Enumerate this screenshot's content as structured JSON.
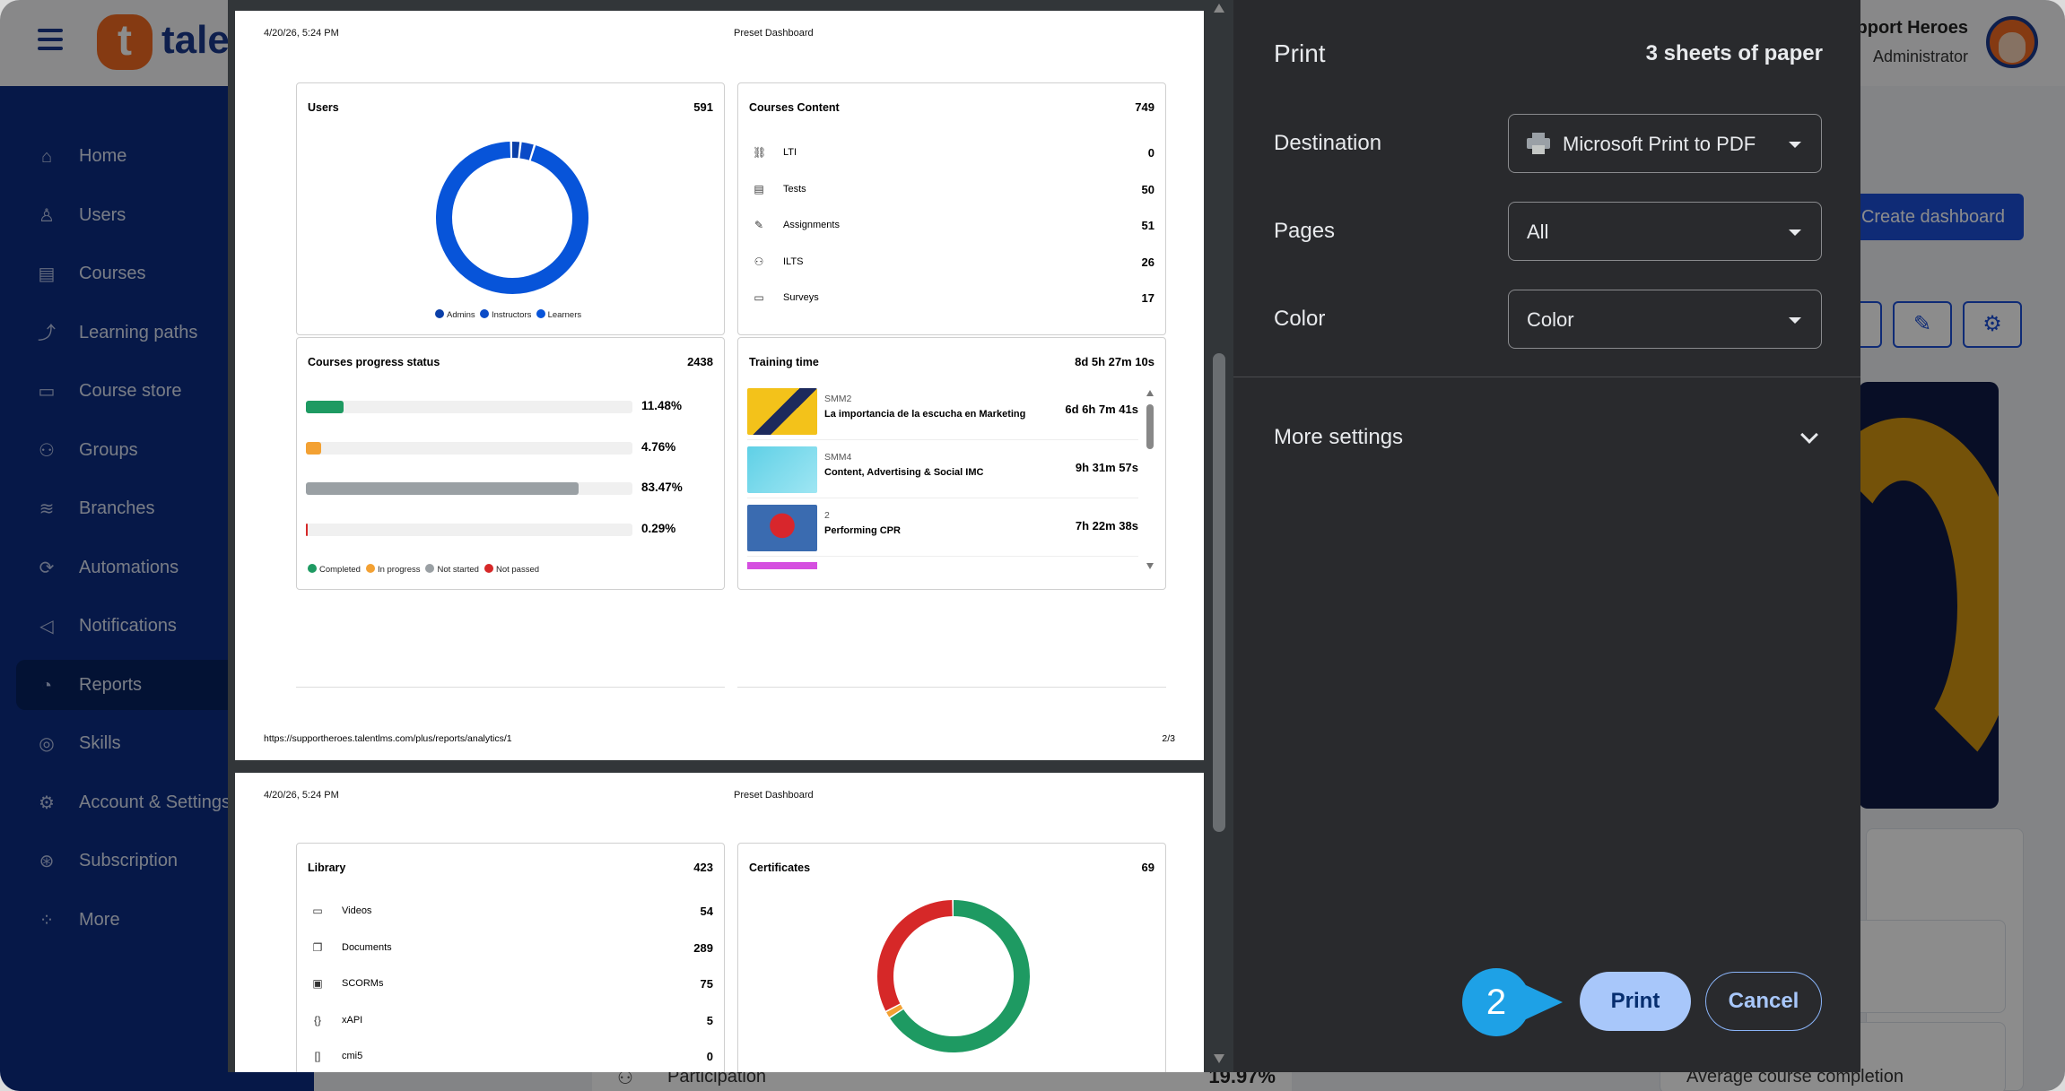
{
  "app": {
    "brand": "tale",
    "user_name": "pport Heroes",
    "user_role": "Administrator",
    "sidebar": [
      {
        "label": "Home",
        "icon": "home-icon",
        "glyph": "⌂"
      },
      {
        "label": "Users",
        "icon": "user-icon",
        "glyph": "♙"
      },
      {
        "label": "Courses",
        "icon": "book-icon",
        "glyph": "▤"
      },
      {
        "label": "Learning paths",
        "icon": "path-icon",
        "glyph": "⤴"
      },
      {
        "label": "Course store",
        "icon": "store-icon",
        "glyph": "▭"
      },
      {
        "label": "Groups",
        "icon": "groups-icon",
        "glyph": "⚇"
      },
      {
        "label": "Branches",
        "icon": "layers-icon",
        "glyph": "≋"
      },
      {
        "label": "Automations",
        "icon": "automation-icon",
        "glyph": "⟳"
      },
      {
        "label": "Notifications",
        "icon": "megaphone-icon",
        "glyph": "◁"
      },
      {
        "label": "Reports",
        "icon": "pie-chart-icon",
        "glyph": "◔",
        "active": true
      },
      {
        "label": "Skills",
        "icon": "skills-icon",
        "glyph": "◎"
      },
      {
        "label": "Account & Settings",
        "icon": "gear-icon",
        "glyph": "⚙"
      },
      {
        "label": "Subscription",
        "icon": "subscription-icon",
        "glyph": "⊛"
      },
      {
        "label": "More",
        "icon": "grid-icon",
        "glyph": "⁘"
      }
    ],
    "create_dashboard": "Create dashboard",
    "participation_label": "Participation",
    "participation_value": "19.97%",
    "avg_label": "Average course completion"
  },
  "preview": {
    "page1": {
      "date": "4/20/26, 5:24 PM",
      "title": "Preset Dashboard",
      "url": "https://supportheroes.talentlms.com/plus/reports/analytics/1",
      "page_no": "2/3",
      "users": {
        "title": "Users",
        "value": "591",
        "legend": [
          "Admins",
          "Instructors",
          "Learners"
        ],
        "segments": [
          0.02,
          0.03,
          0.95
        ],
        "colors": [
          "#0a3fa8",
          "#0b4bc7",
          "#0754d9"
        ]
      },
      "content": {
        "title": "Courses Content",
        "value": "749",
        "rows": [
          {
            "label": "LTI",
            "value": "0",
            "icon": "link-icon",
            "glyph": "⛓"
          },
          {
            "label": "Tests",
            "value": "50",
            "icon": "test-icon",
            "glyph": "▤"
          },
          {
            "label": "Assignments",
            "value": "51",
            "icon": "pencil-icon",
            "glyph": "✎"
          },
          {
            "label": "ILTS",
            "value": "26",
            "icon": "ilt-icon",
            "glyph": "⚇"
          },
          {
            "label": "Surveys",
            "value": "17",
            "icon": "survey-icon",
            "glyph": "▭"
          }
        ]
      },
      "progress": {
        "title": "Courses progress status",
        "value": "2438",
        "rows": [
          {
            "pct": "11.48%",
            "fraction": 0.1148,
            "color": "#1e9a62"
          },
          {
            "pct": "4.76%",
            "fraction": 0.0476,
            "color": "#f3a133"
          },
          {
            "pct": "83.47%",
            "fraction": 0.8347,
            "color": "#9aa0a4"
          },
          {
            "pct": "0.29%",
            "fraction": 0.0029,
            "color": "#d62828"
          }
        ],
        "legend": [
          {
            "label": "Completed",
            "color": "#1e9a62"
          },
          {
            "label": "In progress",
            "color": "#f3a133"
          },
          {
            "label": "Not started",
            "color": "#9aa0a4"
          },
          {
            "label": "Not passed",
            "color": "#d62828"
          }
        ]
      },
      "training": {
        "title": "Training time",
        "value": "8d 5h 27m 10s",
        "rows": [
          {
            "code": "SMM2",
            "name": "La importancia de la escucha en Marketing",
            "time": "6d 6h 7m 41s"
          },
          {
            "code": "SMM4",
            "name": "Content, Advertising & Social IMC",
            "time": "9h 31m 57s"
          },
          {
            "code": "2",
            "name": "Performing CPR",
            "time": "7h 22m 38s"
          }
        ]
      }
    },
    "page2": {
      "date": "4/20/26, 5:24 PM",
      "title": "Preset Dashboard",
      "library": {
        "title": "Library",
        "value": "423",
        "rows": [
          {
            "label": "Videos",
            "value": "54",
            "icon": "video-icon",
            "glyph": "▭"
          },
          {
            "label": "Documents",
            "value": "289",
            "icon": "document-icon",
            "glyph": "❐"
          },
          {
            "label": "SCORMs",
            "value": "75",
            "icon": "scorm-icon",
            "glyph": "▣"
          },
          {
            "label": "xAPI",
            "value": "5",
            "icon": "xapi-icon",
            "glyph": "{}"
          },
          {
            "label": "cmi5",
            "value": "0",
            "icon": "cmi5-icon",
            "glyph": "[]"
          }
        ]
      },
      "certificates": {
        "title": "Certificates",
        "value": "69",
        "segments": [
          0.66,
          0.015,
          0.325
        ],
        "colors": [
          "#1e9a62",
          "#f3a133",
          "#d62828"
        ]
      }
    }
  },
  "print": {
    "title": "Print",
    "sheets": "3 sheets of paper",
    "destination_label": "Destination",
    "destination_value": "Microsoft Print to PDF",
    "pages_label": "Pages",
    "pages_value": "All",
    "color_label": "Color",
    "color_value": "Color",
    "more_settings": "More settings",
    "print_button": "Print",
    "cancel_button": "Cancel"
  },
  "step_marker": "2"
}
